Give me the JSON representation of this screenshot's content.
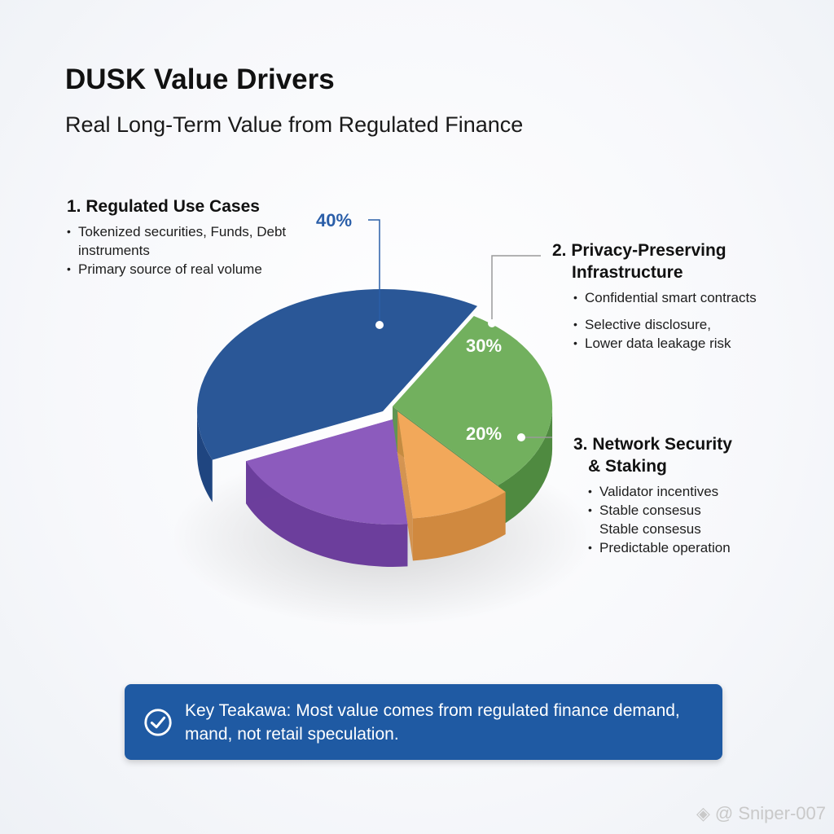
{
  "title": "DUSK Value Drivers",
  "subtitle": "Real Long-Term Value from Regulated Finance",
  "chart_data": {
    "type": "pie",
    "title": "DUSK Value Drivers",
    "subtitle": "Real Long-Term Value from Regulated Finance",
    "slices": [
      {
        "label": "Regulated Use Cases",
        "value": 40,
        "display": "40%",
        "color": "#2a5797",
        "side": "#1f4580"
      },
      {
        "label": "Privacy-Preserving Infrastructure",
        "value": 30,
        "display": "30%",
        "color": "#72b05e",
        "side": "#4f8a40"
      },
      {
        "label": "",
        "value": 10,
        "display": "",
        "color": "#f2a85a",
        "side": "#d0893f"
      },
      {
        "label": "Network Security & Staking",
        "value": 20,
        "display": "20%",
        "color": "#8c5bbd",
        "side": "#6c3e9c"
      }
    ]
  },
  "sections": [
    {
      "heading": "1. Regulated Use Cases",
      "bullets": [
        "Tokenized securities, Funds, Debt instruments",
        "Primary source of real volume"
      ]
    },
    {
      "heading_line1": "2. Privacy-Preserving",
      "heading_line2": "Infrastructure",
      "bullets": [
        "Confidential smart contracts",
        "Selective disclosure,",
        "Lower data leakage risk"
      ]
    },
    {
      "heading_line1": "3. Network Security",
      "heading_line2": "& Staking",
      "bullets": [
        "Validator incentives",
        "Stable consesus",
        "Stable consesus",
        "Predictable operation"
      ]
    }
  ],
  "callout": {
    "text": "Key Teakawa: Most value comes from regulated finance demand, mand, not retail speculation.",
    "icon": "check-circle-icon"
  },
  "watermark": "@ Sniper-007",
  "colors": {
    "accent": "#1f5aa3"
  }
}
